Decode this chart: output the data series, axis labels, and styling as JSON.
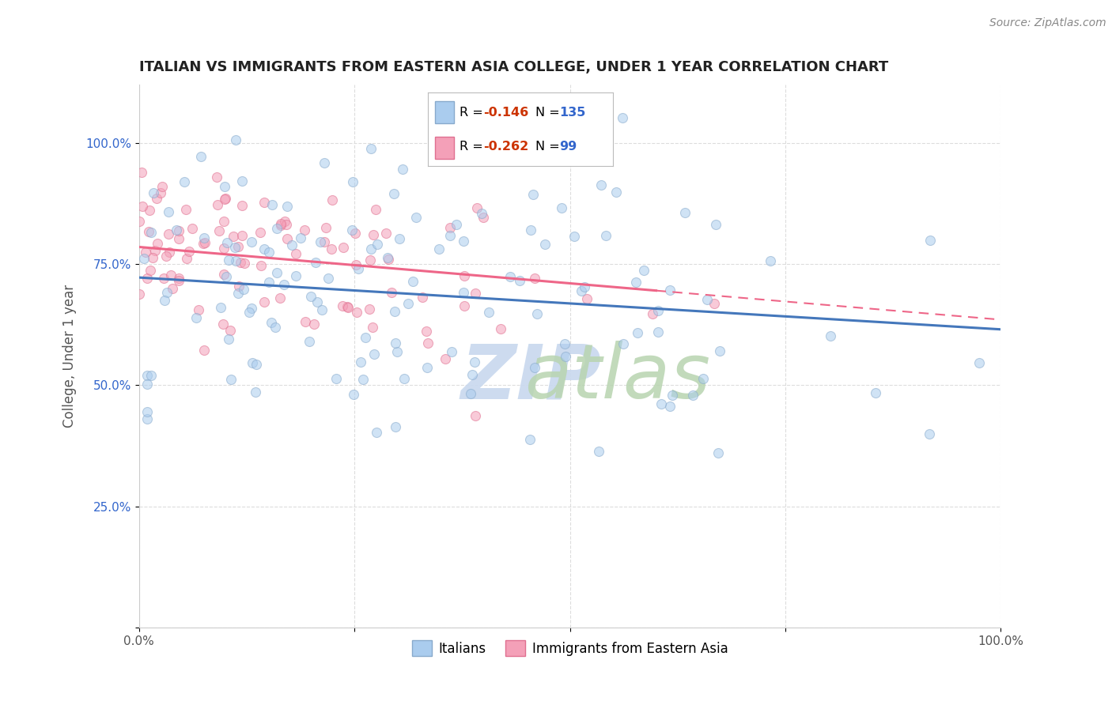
{
  "title": "ITALIAN VS IMMIGRANTS FROM EASTERN ASIA COLLEGE, UNDER 1 YEAR CORRELATION CHART",
  "source": "Source: ZipAtlas.com",
  "ylabel": "College, Under 1 year",
  "xlim": [
    0.0,
    1.0
  ],
  "ylim": [
    0.0,
    1.12
  ],
  "x_tick_labels": [
    "0.0%",
    "",
    "",
    "",
    "100.0%"
  ],
  "y_tick_labels": [
    "",
    "25.0%",
    "50.0%",
    "75.0%",
    "100.0%"
  ],
  "blue_R": "-0.146",
  "blue_N": "135",
  "pink_R": "-0.262",
  "pink_N": "99",
  "blue_color": "#aaccee",
  "blue_edge_color": "#88aacc",
  "pink_color": "#f4a0b8",
  "pink_edge_color": "#e07090",
  "blue_line_color": "#4477bb",
  "pink_line_color": "#ee6688",
  "blue_line_y0": 0.722,
  "blue_line_y1": 0.615,
  "pink_line_y0": 0.785,
  "pink_line_y1": 0.635,
  "scatter_size": 75,
  "scatter_alpha": 0.55,
  "watermark_zip_color": "#c8d8ee",
  "watermark_atlas_color": "#b8d4b0",
  "background_color": "#ffffff",
  "grid_color": "#dddddd",
  "title_color": "#222222",
  "axis_label_color": "#555555",
  "r_value_color": "#cc3300",
  "n_value_color": "#3366cc"
}
